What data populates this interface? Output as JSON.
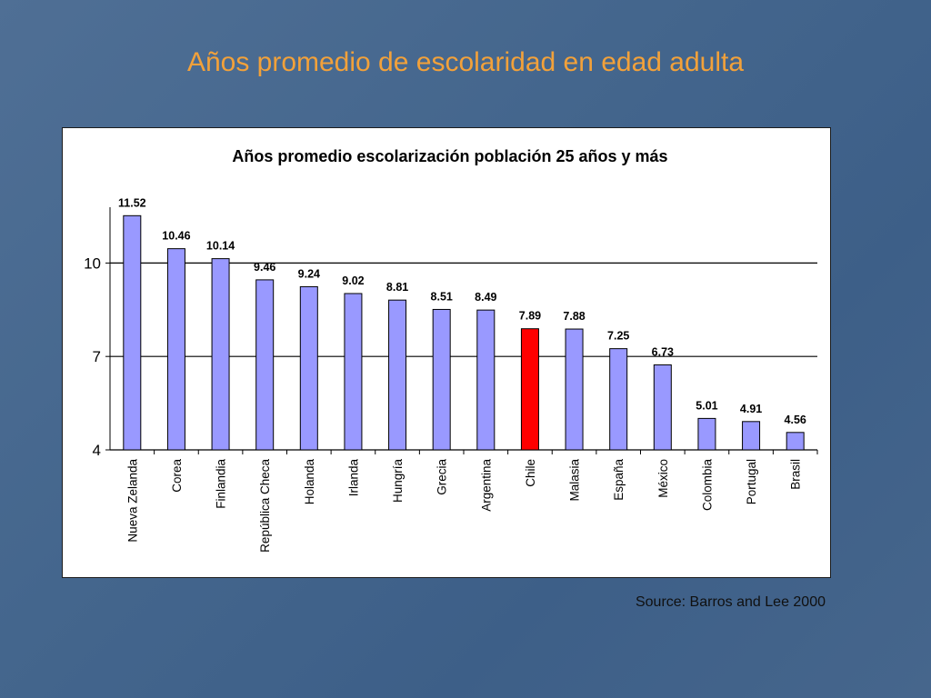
{
  "slide": {
    "title": "Años promedio de escolaridad en edad adulta",
    "source": "Source: Barros and Lee 2000"
  },
  "colors": {
    "background": "#46668c",
    "title": "#f2a13a",
    "bar_default": "#9999ff",
    "bar_highlight": "#ff0000",
    "bar_border": "#000000"
  },
  "chart_data": {
    "type": "bar",
    "title": "Años promedio escolarización población 25 años y más",
    "xlabel": "",
    "ylabel": "",
    "categories": [
      "Nueva Zelanda",
      "Corea",
      "Finlandia",
      "República Checa",
      "Holanda",
      "Irlanda",
      "Hungría",
      "Grecia",
      "Argentina",
      "Chile",
      "Malasia",
      "España",
      "México",
      "Colombia",
      "Portugal",
      "Brasil"
    ],
    "values": [
      11.52,
      10.46,
      10.14,
      9.46,
      9.24,
      9.02,
      8.81,
      8.51,
      8.49,
      7.89,
      7.88,
      7.25,
      6.73,
      5.01,
      4.91,
      4.56
    ],
    "value_labels": [
      "11.52",
      "10.46",
      "10.14",
      "9.46",
      "9.24",
      "9.02",
      "8.81",
      "8.51",
      "8.49",
      "7.89",
      "7.88",
      "7.25",
      "6.73",
      "5.01",
      "4.91",
      "4.56"
    ],
    "highlight_category": "Chile",
    "ylim": [
      4,
      11.5
    ],
    "yticks": [
      4,
      7,
      10
    ],
    "ytick_labels": [
      "4",
      "7",
      "10"
    ],
    "grid": true,
    "legend": "none"
  }
}
